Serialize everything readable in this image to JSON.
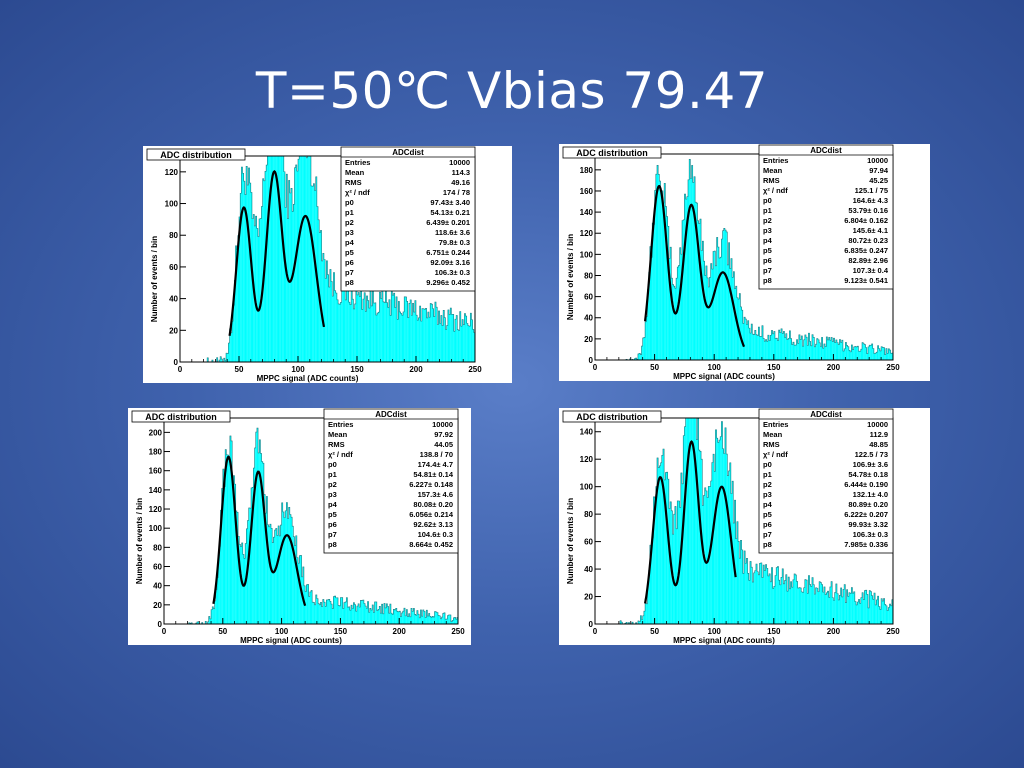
{
  "slide": {
    "title": "T=50℃ Vbias 79.47"
  },
  "colors": {
    "background": "#3f62ad",
    "hist_fill": "#00ffff",
    "fit_line": "#000000"
  },
  "chart_data": [
    {
      "type": "histogram",
      "title": "ADC distribution",
      "xlabel": "MPPC signal (ADC counts)",
      "ylabel": "Number of events / bin",
      "xlim": [
        0,
        250
      ],
      "ylim": [
        0,
        130
      ],
      "xticks": [
        0,
        50,
        100,
        150,
        200,
        250
      ],
      "yticks": [
        0,
        20,
        40,
        60,
        80,
        100,
        120
      ],
      "peaks": [
        54.13,
        79.8,
        106.3
      ],
      "peak_heights": [
        97.43,
        118.6,
        92.09
      ],
      "sigma": [
        6.439,
        6.751,
        9.296
      ],
      "fit_range": [
        42,
        122
      ],
      "tail_start": 60,
      "tail_end": 24,
      "stats": {
        "title": "ADCdist",
        "rows": [
          {
            "label": "Entries",
            "value": "10000"
          },
          {
            "label": "Mean",
            "value": "114.3"
          },
          {
            "label": "RMS",
            "value": "49.16"
          },
          {
            "label": "χ² / ndf",
            "value": "174 / 78"
          },
          {
            "label": "p0",
            "value": "97.43± 3.40"
          },
          {
            "label": "p1",
            "value": "54.13± 0.21"
          },
          {
            "label": "p2",
            "value": "6.439± 0.201"
          },
          {
            "label": "p3",
            "value": "118.6± 3.6"
          },
          {
            "label": "p4",
            "value": "79.8± 0.3"
          },
          {
            "label": "p5",
            "value": "6.751± 0.244"
          },
          {
            "label": "p6",
            "value": "92.09± 3.16"
          },
          {
            "label": "p7",
            "value": "106.3± 0.3"
          },
          {
            "label": "p8",
            "value": "9.296± 0.452"
          }
        ]
      }
    },
    {
      "type": "histogram",
      "title": "ADC distribution",
      "xlabel": "MPPC signal (ADC counts)",
      "ylabel": "Number of events / bin",
      "xlim": [
        0,
        250
      ],
      "ylim": [
        0,
        195
      ],
      "xticks": [
        0,
        50,
        100,
        150,
        200,
        250
      ],
      "yticks": [
        0,
        20,
        40,
        60,
        80,
        100,
        120,
        140,
        160,
        180
      ],
      "peaks": [
        53.79,
        80.72,
        107.3
      ],
      "peak_heights": [
        164.6,
        145.6,
        82.89
      ],
      "sigma": [
        6.804,
        6.835,
        9.123
      ],
      "fit_range": [
        42,
        125
      ],
      "tail_start": 40,
      "tail_end": 8,
      "stats": {
        "title": "ADCdist",
        "rows": [
          {
            "label": "Entries",
            "value": "10000"
          },
          {
            "label": "Mean",
            "value": "97.94"
          },
          {
            "label": "RMS",
            "value": "45.25"
          },
          {
            "label": "χ² / ndf",
            "value": "125.1 / 75"
          },
          {
            "label": "p0",
            "value": "164.6± 4.3"
          },
          {
            "label": "p1",
            "value": "53.79± 0.16"
          },
          {
            "label": "p2",
            "value": "6.804± 0.162"
          },
          {
            "label": "p3",
            "value": "145.6± 4.1"
          },
          {
            "label": "p4",
            "value": "80.72± 0.23"
          },
          {
            "label": "p5",
            "value": "6.835± 0.247"
          },
          {
            "label": "p6",
            "value": "82.89± 2.96"
          },
          {
            "label": "p7",
            "value": "107.3± 0.4"
          },
          {
            "label": "p8",
            "value": "9.123± 0.541"
          }
        ]
      }
    },
    {
      "type": "histogram",
      "title": "ADC distribution",
      "xlabel": "MPPC signal (ADC counts)",
      "ylabel": "Number of events / bin",
      "xlim": [
        0,
        250
      ],
      "ylim": [
        0,
        215
      ],
      "xticks": [
        0,
        50,
        100,
        150,
        200,
        250
      ],
      "yticks": [
        0,
        20,
        40,
        60,
        80,
        100,
        120,
        140,
        160,
        180,
        200
      ],
      "peaks": [
        54.81,
        80.08,
        104.6
      ],
      "peak_heights": [
        174.4,
        157.3,
        92.62
      ],
      "sigma": [
        6.227,
        6.056,
        8.664
      ],
      "fit_range": [
        42,
        120
      ],
      "tail_start": 38,
      "tail_end": 6,
      "stats": {
        "title": "ADCdist",
        "rows": [
          {
            "label": "Entries",
            "value": "10000"
          },
          {
            "label": "Mean",
            "value": "97.92"
          },
          {
            "label": "RMS",
            "value": "44.05"
          },
          {
            "label": "χ² / ndf",
            "value": "138.8 / 70"
          },
          {
            "label": "p0",
            "value": "174.4± 4.7"
          },
          {
            "label": "p1",
            "value": "54.81± 0.14"
          },
          {
            "label": "p2",
            "value": "6.227± 0.148"
          },
          {
            "label": "p3",
            "value": "157.3± 4.6"
          },
          {
            "label": "p4",
            "value": "80.08± 0.20"
          },
          {
            "label": "p5",
            "value": "6.056± 0.214"
          },
          {
            "label": "p6",
            "value": "92.62± 3.13"
          },
          {
            "label": "p7",
            "value": "104.6± 0.3"
          },
          {
            "label": "p8",
            "value": "8.664± 0.452"
          }
        ]
      }
    },
    {
      "type": "histogram",
      "title": "ADC distribution",
      "xlabel": "MPPC signal (ADC counts)",
      "ylabel": "Number of events / bin",
      "xlim": [
        0,
        250
      ],
      "ylim": [
        0,
        150
      ],
      "xticks": [
        0,
        50,
        100,
        150,
        200,
        250
      ],
      "yticks": [
        0,
        20,
        40,
        60,
        80,
        100,
        120,
        140
      ],
      "peaks": [
        54.78,
        80.89,
        106.3
      ],
      "peak_heights": [
        106.9,
        132.1,
        99.93
      ],
      "sigma": [
        6.444,
        6.222,
        7.985
      ],
      "fit_range": [
        42,
        118
      ],
      "tail_start": 55,
      "tail_end": 14,
      "stats": {
        "title": "ADCdist",
        "rows": [
          {
            "label": "Entries",
            "value": "10000"
          },
          {
            "label": "Mean",
            "value": "112.9"
          },
          {
            "label": "RMS",
            "value": "48.85"
          },
          {
            "label": "χ² / ndf",
            "value": "122.5 / 73"
          },
          {
            "label": "p0",
            "value": "106.9± 3.6"
          },
          {
            "label": "p1",
            "value": "54.78± 0.18"
          },
          {
            "label": "p2",
            "value": "6.444± 0.190"
          },
          {
            "label": "p3",
            "value": "132.1± 4.0"
          },
          {
            "label": "p4",
            "value": "80.89± 0.20"
          },
          {
            "label": "p5",
            "value": "6.222± 0.207"
          },
          {
            "label": "p6",
            "value": "99.93± 3.32"
          },
          {
            "label": "p7",
            "value": "106.3± 0.3"
          },
          {
            "label": "p8",
            "value": "7.985± 0.336"
          }
        ]
      }
    }
  ]
}
